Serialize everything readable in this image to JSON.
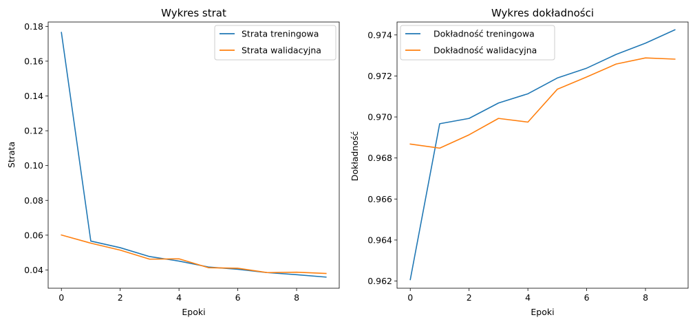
{
  "chart_data": [
    {
      "type": "line",
      "title": "Wykres strat",
      "xlabel": "Epoki",
      "ylabel": "Strata",
      "x": [
        0,
        1,
        2,
        3,
        4,
        5,
        6,
        7,
        8,
        9
      ],
      "xlim": [
        -0.45,
        9.45
      ],
      "ylim": [
        0.0295,
        0.1825
      ],
      "xticks": [
        0,
        2,
        4,
        6,
        8
      ],
      "yticks": [
        0.04,
        0.06,
        0.08,
        0.1,
        0.12,
        0.14,
        0.16,
        0.18
      ],
      "ytick_labels": [
        "0.04",
        "0.06",
        "0.08",
        "0.10",
        "0.12",
        "0.14",
        "0.16",
        "0.18"
      ],
      "legend_position": "top-right",
      "series": [
        {
          "name": "Strata treningowa",
          "color": "#1f77b4",
          "values": [
            0.1765,
            0.0566,
            0.0528,
            0.0477,
            0.0451,
            0.0417,
            0.0404,
            0.0385,
            0.0373,
            0.0359
          ]
        },
        {
          "name": "Strata walidacyjna",
          "color": "#ff7f0e",
          "values": [
            0.0601,
            0.0554,
            0.0514,
            0.0462,
            0.0464,
            0.0413,
            0.041,
            0.0385,
            0.0387,
            0.038
          ]
        }
      ]
    },
    {
      "type": "line",
      "title": "Wykres dokładności",
      "xlabel": "Epoki",
      "ylabel": "Dokładność",
      "x": [
        0,
        1,
        2,
        3,
        4,
        5,
        6,
        7,
        8,
        9
      ],
      "xlim": [
        -0.45,
        9.45
      ],
      "ylim": [
        0.96165,
        0.97463
      ],
      "xticks": [
        0,
        2,
        4,
        6,
        8
      ],
      "yticks": [
        0.962,
        0.964,
        0.966,
        0.968,
        0.97,
        0.972,
        0.974
      ],
      "ytick_labels": [
        "0.962",
        "0.964",
        "0.966",
        "0.968",
        "0.970",
        "0.972",
        "0.974"
      ],
      "legend_position": "top-left",
      "series": [
        {
          "name": "Dokładność treningowa",
          "color": "#1f77b4",
          "values": [
            0.96207,
            0.96967,
            0.96993,
            0.97068,
            0.97113,
            0.9719,
            0.97238,
            0.97305,
            0.9736,
            0.97425
          ]
        },
        {
          "name": "Dokładność walidacyjna",
          "color": "#ff7f0e",
          "values": [
            0.96868,
            0.96848,
            0.96913,
            0.96993,
            0.96975,
            0.97135,
            0.97195,
            0.97258,
            0.97288,
            0.97282
          ]
        }
      ]
    }
  ]
}
